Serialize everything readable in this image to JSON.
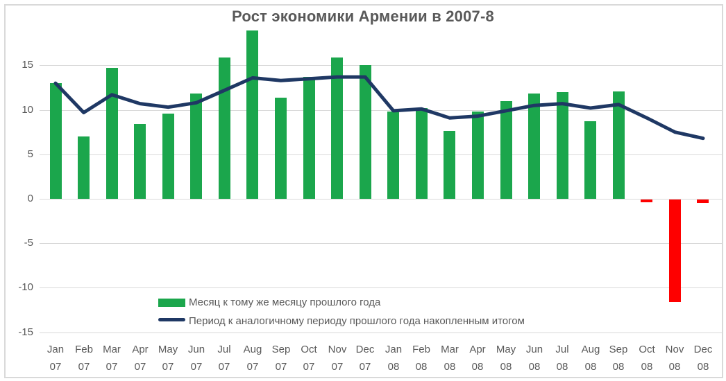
{
  "title": "Рост экономики Армении в 2007-8",
  "colors": {
    "bar_positive": "#1BA64C",
    "bar_negative": "#FE0000",
    "line": "#1F3864",
    "text": "#595959",
    "gridline": "#D9D9D9",
    "frame_border": "#D9D9D9",
    "background": "#FFFFFF"
  },
  "legend": {
    "items": [
      {
        "label": "Месяц к тому же месяцу прошлого года",
        "swatch": "bar",
        "color": "#1BA64C"
      },
      {
        "label": "Период к аналогичному периоду прошлого года накопленным итогом",
        "swatch": "line",
        "color": "#1F3864"
      }
    ],
    "position": "bottom-left-inside"
  },
  "chart_data": {
    "type": "bar",
    "title": "Рост экономики Армении в 2007-8",
    "categories": [
      "Jan 07",
      "Feb 07",
      "Mar 07",
      "Apr 07",
      "May 07",
      "Jun 07",
      "Jul 07",
      "Aug 07",
      "Sep 07",
      "Oct 07",
      "Nov 07",
      "Dec 07",
      "Jan 08",
      "Feb 08",
      "Mar 08",
      "Apr 08",
      "May 08",
      "Jun 08",
      "Jul 08",
      "Aug 08",
      "Sep 08",
      "Oct 08",
      "Nov 08",
      "Dec 08"
    ],
    "series": [
      {
        "name": "Месяц к тому же месяцу прошлого года",
        "type": "bar",
        "values": [
          13.0,
          7.0,
          14.7,
          8.4,
          9.6,
          11.8,
          15.9,
          18.9,
          11.4,
          13.7,
          15.9,
          15.0,
          9.8,
          10.2,
          7.6,
          9.8,
          11.0,
          11.8,
          12.0,
          8.7,
          12.1,
          -0.3,
          -11.5,
          -0.4
        ]
      },
      {
        "name": "Период к аналогичному периоду прошлого года накопленным итогом",
        "type": "line",
        "values": [
          13.0,
          9.7,
          11.7,
          10.7,
          10.3,
          10.8,
          12.2,
          13.6,
          13.3,
          13.5,
          13.7,
          13.7,
          9.9,
          10.1,
          9.1,
          9.3,
          9.9,
          10.5,
          10.7,
          10.2,
          10.6,
          9.1,
          7.5,
          6.8
        ]
      }
    ],
    "xlabel": "",
    "ylabel": "",
    "ylim": [
      -15,
      20
    ],
    "yticks": [
      15,
      10,
      5,
      0,
      -5,
      -10,
      -15
    ],
    "grid": "horizontal",
    "legend_position": "bottom-left-inside"
  }
}
